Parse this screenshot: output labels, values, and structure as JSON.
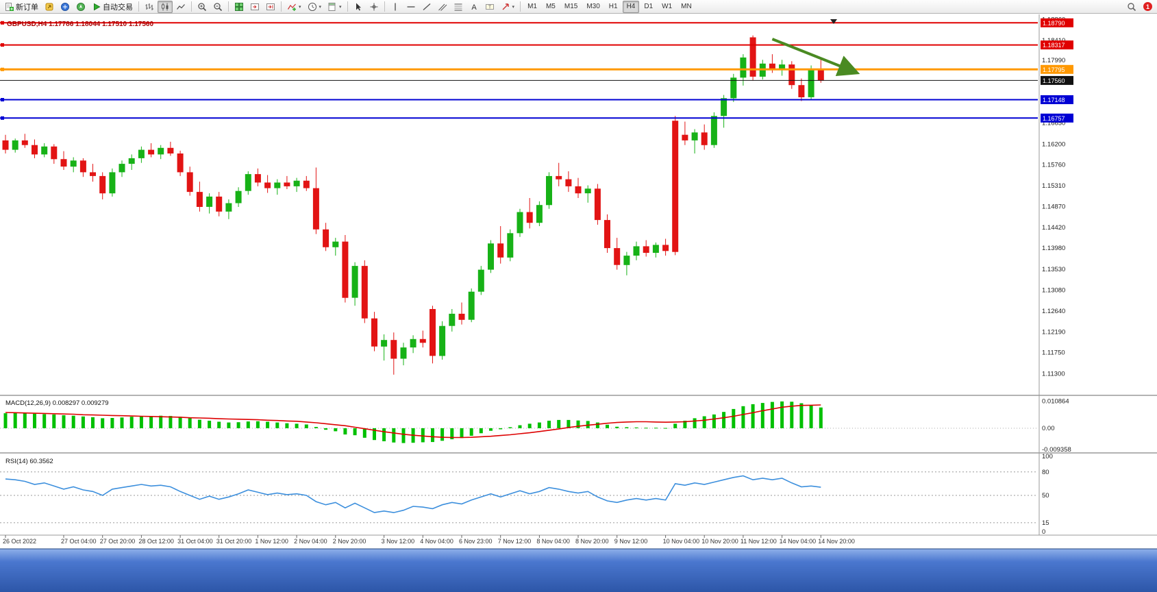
{
  "toolbar": {
    "items": [
      {
        "icon": "new-order",
        "label": "新订单"
      },
      {
        "icon": "metaeditor"
      },
      {
        "icon": "market-watch"
      },
      {
        "icon": "navigator"
      },
      {
        "icon": "autotrade",
        "label": "自动交易"
      },
      {
        "sep": true
      },
      {
        "icon": "bar-chart"
      },
      {
        "icon": "candle-chart",
        "active": true
      },
      {
        "icon": "line-chart"
      },
      {
        "sep": true
      },
      {
        "icon": "zoom-in"
      },
      {
        "icon": "zoom-out"
      },
      {
        "sep": true
      },
      {
        "icon": "tile-windows"
      },
      {
        "icon": "chart-shift"
      },
      {
        "icon": "auto-scroll"
      },
      {
        "sep": true
      },
      {
        "icon": "indicators",
        "dropdown": true
      },
      {
        "icon": "periods",
        "dropdown": true
      },
      {
        "icon": "templates",
        "dropdown": true
      },
      {
        "sep": true
      },
      {
        "icon": "cursor"
      },
      {
        "icon": "crosshair"
      },
      {
        "sep": true
      },
      {
        "icon": "vertical-line"
      },
      {
        "icon": "horizontal-line"
      },
      {
        "icon": "trendline"
      },
      {
        "icon": "channel"
      },
      {
        "icon": "fibonacci"
      },
      {
        "icon": "text"
      },
      {
        "icon": "text-label"
      },
      {
        "icon": "arrow-tools",
        "dropdown": true
      },
      {
        "sep": true
      }
    ],
    "timeframes": [
      "M1",
      "M5",
      "M15",
      "M30",
      "H1",
      "H4",
      "D1",
      "W1",
      "MN"
    ],
    "active_timeframe": "H4",
    "notification_count": "1"
  },
  "chart_data": {
    "type": "candlestick",
    "symbol": "GBPUSD",
    "timeframe": "H4",
    "symbol_label": "GBPUSD,H4 1.17786 1.18044 1.17510 1.17560",
    "ohlc_display": {
      "open": "1.17786",
      "high": "1.18044",
      "low": "1.17510",
      "close": "1.17560"
    },
    "ylim": [
      1.10867,
      1.18867
    ],
    "colors": {
      "up": "#17b217",
      "down": "#e21414",
      "background": "#ffffff"
    },
    "price_axis_labels": [
      "1.18860",
      "1.18410",
      "1.17990",
      "1.17560",
      "1.17100",
      "1.16650",
      "1.16200",
      "1.15760",
      "1.15310",
      "1.14870",
      "1.14420",
      "1.13980",
      "1.13530",
      "1.13080",
      "1.12640",
      "1.12190",
      "1.11750",
      "1.11300"
    ],
    "hlines": [
      {
        "price": 1.1879,
        "color": "#e00000",
        "width": 2,
        "label": "1.18790"
      },
      {
        "price": 1.18317,
        "color": "#e00000",
        "width": 2,
        "label": "1.18317"
      },
      {
        "price": 1.17795,
        "color": "#ff9800",
        "width": 3,
        "label": "1.17795"
      },
      {
        "price": 1.1756,
        "color": "#111111",
        "width": 1,
        "label": "1.17560",
        "current": true
      },
      {
        "price": 1.17148,
        "color": "#0000d4",
        "width": 2,
        "label": "1.17148"
      },
      {
        "price": 1.16757,
        "color": "#0000d4",
        "width": 2,
        "label": "1.16757"
      }
    ],
    "annotations": [
      {
        "type": "arrow",
        "from_index": 79,
        "from_price": 1.18443,
        "to_index": 87.5,
        "to_price": 1.17741,
        "color": "#4a8a22",
        "width": 4
      }
    ],
    "candles": [
      [
        1.1628,
        1.164,
        1.16,
        1.1608
      ],
      [
        1.1608,
        1.1632,
        1.1602,
        1.1628
      ],
      [
        1.1628,
        1.1642,
        1.1612,
        1.1618
      ],
      [
        1.1618,
        1.163,
        1.159,
        1.1598
      ],
      [
        1.1598,
        1.1622,
        1.1592,
        1.1615
      ],
      [
        1.1615,
        1.162,
        1.1578,
        1.1588
      ],
      [
        1.1588,
        1.1605,
        1.1565,
        1.1572
      ],
      [
        1.1572,
        1.1592,
        1.156,
        1.1585
      ],
      [
        1.1585,
        1.159,
        1.155,
        1.156
      ],
      [
        1.156,
        1.1578,
        1.154,
        1.1552
      ],
      [
        1.1552,
        1.156,
        1.1502,
        1.1515
      ],
      [
        1.1515,
        1.1568,
        1.1508,
        1.156
      ],
      [
        1.156,
        1.1585,
        1.155,
        1.1578
      ],
      [
        1.1578,
        1.1598,
        1.1565,
        1.159
      ],
      [
        1.159,
        1.1615,
        1.158,
        1.1608
      ],
      [
        1.1608,
        1.1622,
        1.1592,
        1.1598
      ],
      [
        1.1598,
        1.1618,
        1.1588,
        1.1612
      ],
      [
        1.1612,
        1.1625,
        1.1595,
        1.16
      ],
      [
        1.16,
        1.1606,
        1.1552,
        1.156
      ],
      [
        1.156,
        1.1572,
        1.151,
        1.1518
      ],
      [
        1.1518,
        1.154,
        1.1476,
        1.1486
      ],
      [
        1.1486,
        1.1515,
        1.1472,
        1.1508
      ],
      [
        1.1508,
        1.1518,
        1.1466,
        1.1476
      ],
      [
        1.1476,
        1.1502,
        1.146,
        1.1494
      ],
      [
        1.1494,
        1.1528,
        1.1486,
        1.152
      ],
      [
        1.152,
        1.1562,
        1.1512,
        1.1556
      ],
      [
        1.1556,
        1.1568,
        1.153,
        1.1538
      ],
      [
        1.1538,
        1.1554,
        1.1516,
        1.1526
      ],
      [
        1.1526,
        1.1545,
        1.1512,
        1.1538
      ],
      [
        1.1538,
        1.1552,
        1.1524,
        1.153
      ],
      [
        1.153,
        1.1548,
        1.1518,
        1.1542
      ],
      [
        1.1542,
        1.1552,
        1.152,
        1.1526
      ],
      [
        1.1526,
        1.157,
        1.1428,
        1.1438
      ],
      [
        1.1438,
        1.1452,
        1.1392,
        1.14
      ],
      [
        1.14,
        1.142,
        1.1382,
        1.1412
      ],
      [
        1.1412,
        1.1426,
        1.1282,
        1.1292
      ],
      [
        1.1292,
        1.1368,
        1.1275,
        1.136
      ],
      [
        1.136,
        1.1372,
        1.1238,
        1.1248
      ],
      [
        1.1248,
        1.1262,
        1.1178,
        1.1188
      ],
      [
        1.1188,
        1.1214,
        1.1158,
        1.1202
      ],
      [
        1.1202,
        1.1218,
        1.1128,
        1.1162
      ],
      [
        1.1162,
        1.1196,
        1.1148,
        1.1186
      ],
      [
        1.1186,
        1.1212,
        1.1174,
        1.1204
      ],
      [
        1.1204,
        1.1222,
        1.1186,
        1.1196
      ],
      [
        1.1268,
        1.1275,
        1.1152,
        1.1168
      ],
      [
        1.1168,
        1.1242,
        1.116,
        1.1232
      ],
      [
        1.1232,
        1.1268,
        1.122,
        1.1258
      ],
      [
        1.1258,
        1.1282,
        1.1235,
        1.1245
      ],
      [
        1.1245,
        1.1312,
        1.124,
        1.1305
      ],
      [
        1.1305,
        1.136,
        1.1298,
        1.1352
      ],
      [
        1.1352,
        1.1415,
        1.1345,
        1.1408
      ],
      [
        1.1408,
        1.1445,
        1.1365,
        1.1378
      ],
      [
        1.1378,
        1.1438,
        1.137,
        1.143
      ],
      [
        1.143,
        1.1482,
        1.1422,
        1.1475
      ],
      [
        1.1475,
        1.1505,
        1.144,
        1.1452
      ],
      [
        1.1452,
        1.1498,
        1.1445,
        1.149
      ],
      [
        1.149,
        1.156,
        1.1482,
        1.1552
      ],
      [
        1.1552,
        1.158,
        1.153,
        1.1545
      ],
      [
        1.1545,
        1.1562,
        1.1518,
        1.153
      ],
      [
        1.153,
        1.1548,
        1.1505,
        1.1515
      ],
      [
        1.1515,
        1.1532,
        1.1495,
        1.1525
      ],
      [
        1.1525,
        1.1535,
        1.1448,
        1.1458
      ],
      [
        1.1458,
        1.147,
        1.1388,
        1.1398
      ],
      [
        1.1398,
        1.142,
        1.1352,
        1.1362
      ],
      [
        1.1362,
        1.139,
        1.134,
        1.1382
      ],
      [
        1.1382,
        1.1412,
        1.1372,
        1.1402
      ],
      [
        1.1402,
        1.1415,
        1.138,
        1.1388
      ],
      [
        1.1388,
        1.141,
        1.1378,
        1.1405
      ],
      [
        1.1405,
        1.1418,
        1.1382,
        1.1392
      ],
      [
        1.167,
        1.168,
        1.1383,
        1.139
      ],
      [
        1.164,
        1.1668,
        1.1618,
        1.1628
      ],
      [
        1.1628,
        1.1652,
        1.16,
        1.1645
      ],
      [
        1.1645,
        1.1662,
        1.1608,
        1.1618
      ],
      [
        1.1618,
        1.1688,
        1.1612,
        1.168
      ],
      [
        1.168,
        1.1725,
        1.1655,
        1.1718
      ],
      [
        1.1718,
        1.177,
        1.171,
        1.1762
      ],
      [
        1.1762,
        1.1812,
        1.1745,
        1.1805
      ],
      [
        1.1848,
        1.1852,
        1.1756,
        1.1764
      ],
      [
        1.1764,
        1.18,
        1.1758,
        1.1792
      ],
      [
        1.1792,
        1.1812,
        1.1772,
        1.178
      ],
      [
        1.178,
        1.18,
        1.1766,
        1.179
      ],
      [
        1.179,
        1.1797,
        1.1738,
        1.1746
      ],
      [
        1.1746,
        1.176,
        1.1712,
        1.172
      ],
      [
        1.172,
        1.1788,
        1.1714,
        1.1779
      ],
      [
        1.1779,
        1.1804,
        1.1751,
        1.1756
      ]
    ],
    "time_labels": [
      {
        "index": 0,
        "text": "26 Oct 2022"
      },
      {
        "index": 6,
        "text": "27 Oct 04:00"
      },
      {
        "index": 10,
        "text": "27 Oct 20:00"
      },
      {
        "index": 14,
        "text": "28 Oct 12:00"
      },
      {
        "index": 18,
        "text": "31 Oct 04:00"
      },
      {
        "index": 22,
        "text": "31 Oct 20:00"
      },
      {
        "index": 26,
        "text": "1 Nov 12:00"
      },
      {
        "index": 30,
        "text": "2 Nov 04:00"
      },
      {
        "index": 34,
        "text": "2 Nov 20:00"
      },
      {
        "index": 39,
        "text": "3 Nov 12:00"
      },
      {
        "index": 43,
        "text": "4 Nov 04:00"
      },
      {
        "index": 47,
        "text": "6 Nov 23:00"
      },
      {
        "index": 51,
        "text": "7 Nov 12:00"
      },
      {
        "index": 55,
        "text": "8 Nov 04:00"
      },
      {
        "index": 59,
        "text": "8 Nov 20:00"
      },
      {
        "index": 63,
        "text": "9 Nov 12:00"
      },
      {
        "index": 68,
        "text": "10 Nov 04:00"
      },
      {
        "index": 72,
        "text": "10 Nov 20:00"
      },
      {
        "index": 76,
        "text": "11 Nov 12:00"
      },
      {
        "index": 80,
        "text": "14 Nov 04:00"
      },
      {
        "index": 84,
        "text": "14 Nov 20:00"
      }
    ],
    "indicators": {
      "macd": {
        "label": "MACD(12,26,9) 0.008297 0.009279",
        "histogram_color": "#00c000",
        "signal_color": "#dd0000",
        "axis": [
          {
            "value": 0.010864,
            "label": "0.010864"
          },
          {
            "value": 0,
            "label": "0.00"
          },
          {
            "value": -0.009358,
            "label": "-0.009358"
          }
        ],
        "histogram": [
          0.006,
          0.0062,
          0.0061,
          0.0058,
          0.0056,
          0.0055,
          0.0052,
          0.005,
          0.0047,
          0.0044,
          0.004,
          0.0041,
          0.0043,
          0.0046,
          0.0048,
          0.0049,
          0.005,
          0.0049,
          0.0046,
          0.004,
          0.0034,
          0.003,
          0.0026,
          0.0023,
          0.0024,
          0.0027,
          0.0028,
          0.0026,
          0.0023,
          0.002,
          0.0018,
          0.0015,
          0.0005,
          -0.0006,
          -0.0012,
          -0.0025,
          -0.0028,
          -0.0038,
          -0.0047,
          -0.0052,
          -0.0057,
          -0.0059,
          -0.0058,
          -0.0056,
          -0.0055,
          -0.005,
          -0.0044,
          -0.0039,
          -0.003,
          -0.002,
          -0.001,
          -0.0004,
          0.0004,
          0.0012,
          0.0018,
          0.0023,
          0.003,
          0.0033,
          0.0033,
          0.0031,
          0.0029,
          0.0023,
          0.0014,
          0.0006,
          0.0004,
          0.0003,
          0.0002,
          0.0002,
          0.0001,
          0.0018,
          0.003,
          0.004,
          0.0048,
          0.0055,
          0.0065,
          0.0077,
          0.0088,
          0.0096,
          0.0101,
          0.0105,
          0.0107,
          0.0106,
          0.01,
          0.0092,
          0.0083
        ],
        "signal": [
          0.0063,
          0.0062,
          0.0061,
          0.006,
          0.0059,
          0.0058,
          0.0057,
          0.0056,
          0.0054,
          0.0053,
          0.0052,
          0.0051,
          0.005,
          0.0049,
          0.0048,
          0.0047,
          0.0046,
          0.0045,
          0.0044,
          0.0042,
          0.0041,
          0.004,
          0.0038,
          0.0037,
          0.0036,
          0.0035,
          0.0034,
          0.0032,
          0.0031,
          0.0029,
          0.0028,
          0.0025,
          0.0022,
          0.0018,
          0.0014,
          0.001,
          0.0004,
          -0.0002,
          -0.0008,
          -0.0014,
          -0.0019,
          -0.0024,
          -0.0028,
          -0.0031,
          -0.0034,
          -0.0036,
          -0.0037,
          -0.0037,
          -0.0036,
          -0.0034,
          -0.0032,
          -0.0029,
          -0.0026,
          -0.0022,
          -0.0018,
          -0.0013,
          -0.0008,
          -0.0003,
          0.0003,
          0.0008,
          0.0012,
          0.0016,
          0.002,
          0.0023,
          0.0025,
          0.0026,
          0.0026,
          0.0025,
          0.0024,
          0.0025,
          0.0026,
          0.0029,
          0.0032,
          0.0037,
          0.0042,
          0.0048,
          0.0055,
          0.0062,
          0.007,
          0.0077,
          0.0084,
          0.0088,
          0.0091,
          0.0092,
          0.0093
        ]
      },
      "rsi": {
        "label": "RSI(14) 60.3562",
        "line_color": "#3c8fdd",
        "levels": [
          80,
          50,
          15
        ],
        "axis": [
          {
            "value": 100,
            "label": "100"
          },
          {
            "value": 80,
            "label": "80"
          },
          {
            "value": 50,
            "label": "50"
          },
          {
            "value": 15,
            "label": "15"
          },
          {
            "value": 0,
            "label": "0"
          }
        ],
        "values": [
          71,
          70,
          68,
          64,
          66,
          62,
          58,
          61,
          57,
          55,
          50,
          58,
          60,
          62,
          64,
          62,
          63,
          61,
          55,
          50,
          45,
          49,
          45,
          48,
          52,
          57,
          54,
          51,
          53,
          51,
          52,
          50,
          42,
          38,
          41,
          34,
          40,
          34,
          28,
          30,
          28,
          31,
          36,
          35,
          33,
          38,
          41,
          39,
          44,
          48,
          52,
          48,
          52,
          56,
          52,
          55,
          60,
          58,
          55,
          53,
          55,
          48,
          43,
          41,
          44,
          46,
          44,
          46,
          44,
          65,
          63,
          66,
          64,
          67,
          70,
          73,
          75,
          70,
          72,
          70,
          72,
          66,
          61,
          62,
          60.4
        ]
      }
    }
  }
}
